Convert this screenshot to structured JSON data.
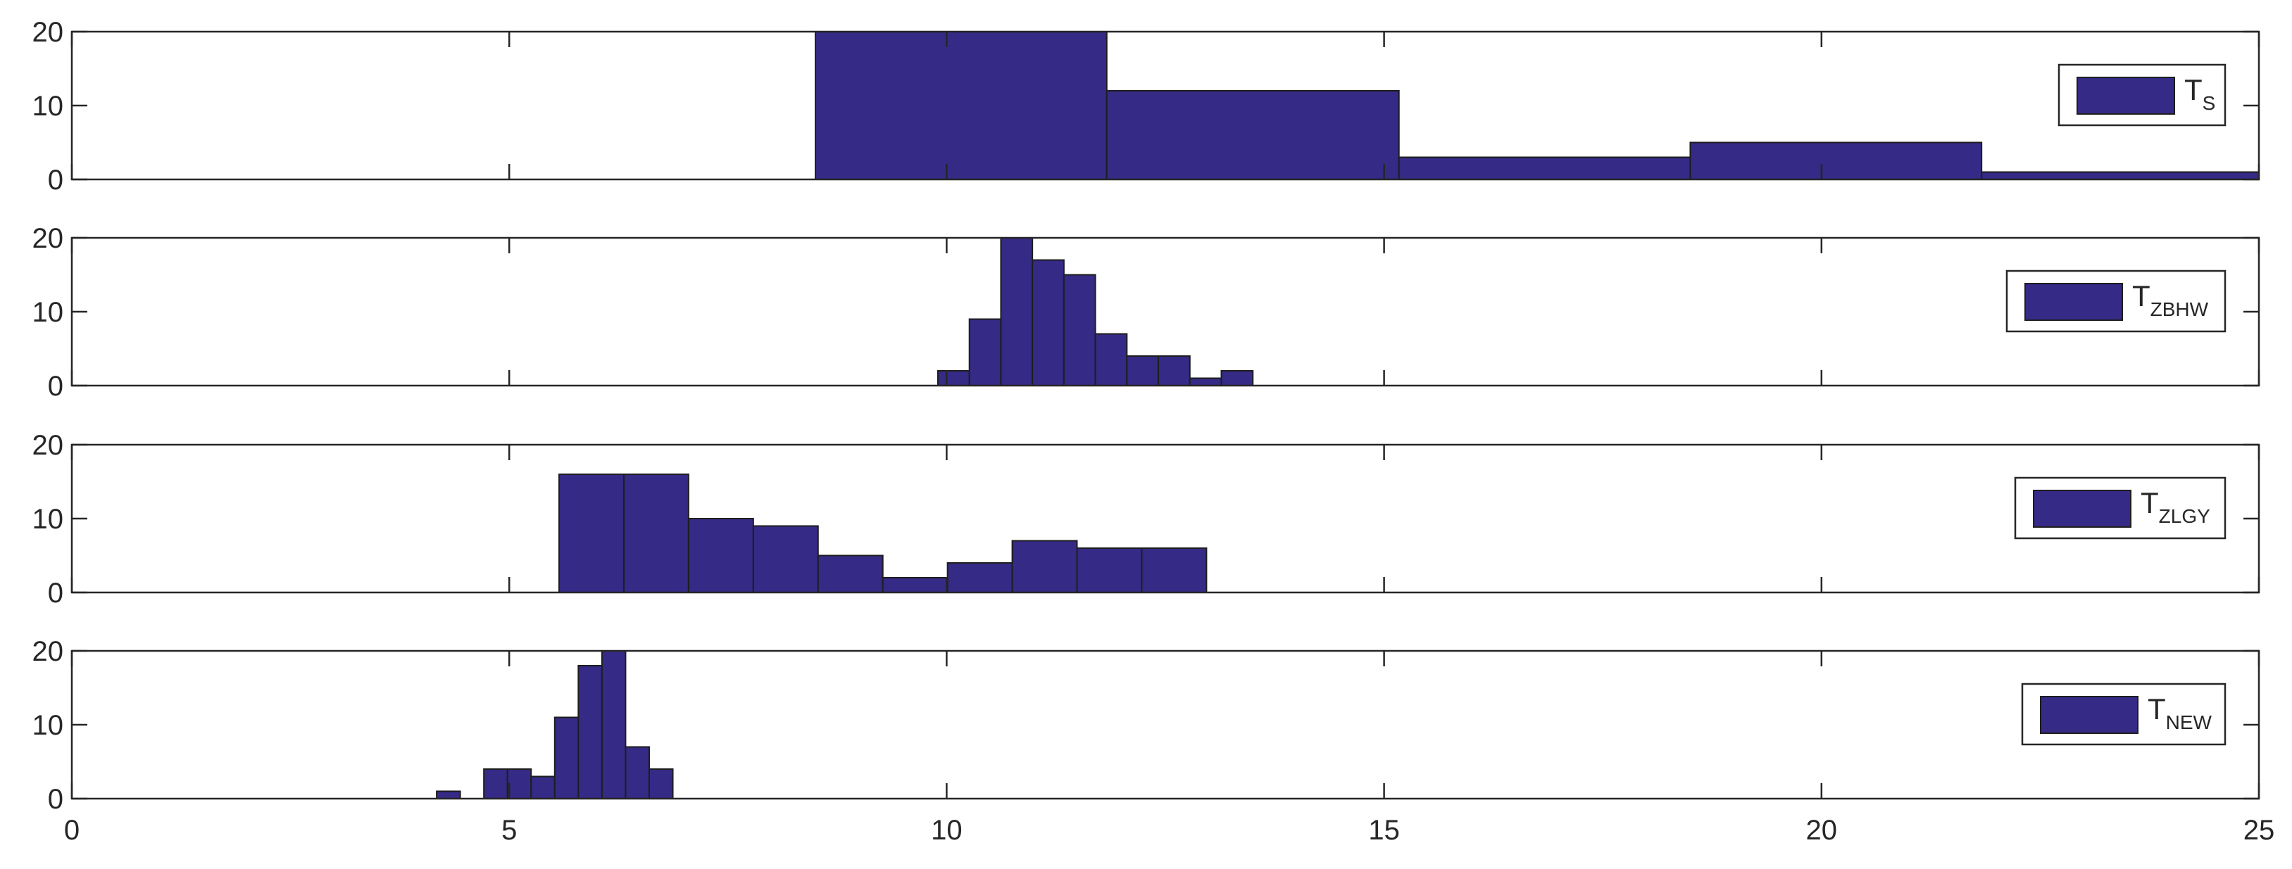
{
  "chart_data": [
    {
      "type": "bar",
      "legend": {
        "main": "T",
        "sub": "S",
        "placement": "right"
      },
      "bar_color": "#352a86",
      "xlim": [
        0,
        25
      ],
      "ylim": [
        0,
        20
      ],
      "xticks": [
        0,
        5,
        10,
        15,
        20,
        25
      ],
      "yticks": [
        0,
        10,
        20
      ],
      "bins": [
        {
          "x0": 8.5,
          "x1": 11.83,
          "count": 20
        },
        {
          "x0": 11.83,
          "x1": 15.17,
          "count": 12
        },
        {
          "x0": 15.17,
          "x1": 18.5,
          "count": 3
        },
        {
          "x0": 18.5,
          "x1": 21.83,
          "count": 5
        },
        {
          "x0": 21.83,
          "x1": 25.17,
          "count": 1
        }
      ]
    },
    {
      "type": "bar",
      "legend": {
        "main": "T",
        "sub": "ZBHW",
        "placement": "right"
      },
      "bar_color": "#352a86",
      "xlim": [
        0,
        25
      ],
      "ylim": [
        0,
        20
      ],
      "xticks": [
        0,
        5,
        10,
        15,
        20,
        25
      ],
      "yticks": [
        0,
        10,
        20
      ],
      "bins": [
        {
          "x0": 9.9,
          "x1": 10.26,
          "count": 2
        },
        {
          "x0": 10.26,
          "x1": 10.62,
          "count": 9
        },
        {
          "x0": 10.62,
          "x1": 10.98,
          "count": 20
        },
        {
          "x0": 10.98,
          "x1": 11.34,
          "count": 17
        },
        {
          "x0": 11.34,
          "x1": 11.7,
          "count": 15
        },
        {
          "x0": 11.7,
          "x1": 12.06,
          "count": 7
        },
        {
          "x0": 12.06,
          "x1": 12.42,
          "count": 4
        },
        {
          "x0": 12.42,
          "x1": 12.78,
          "count": 4
        },
        {
          "x0": 12.78,
          "x1": 13.14,
          "count": 1
        },
        {
          "x0": 13.14,
          "x1": 13.5,
          "count": 2
        }
      ]
    },
    {
      "type": "bar",
      "legend": {
        "main": "T",
        "sub": "ZLGY",
        "placement": "right"
      },
      "bar_color": "#352a86",
      "xlim": [
        0,
        25
      ],
      "ylim": [
        0,
        20
      ],
      "xticks": [
        0,
        5,
        10,
        15,
        20,
        25
      ],
      "yticks": [
        0,
        10,
        20
      ],
      "bins": [
        {
          "x0": 5.57,
          "x1": 6.31,
          "count": 16
        },
        {
          "x0": 6.31,
          "x1": 7.05,
          "count": 16
        },
        {
          "x0": 7.05,
          "x1": 7.79,
          "count": 10
        },
        {
          "x0": 7.79,
          "x1": 8.53,
          "count": 9
        },
        {
          "x0": 8.53,
          "x1": 9.27,
          "count": 5
        },
        {
          "x0": 9.27,
          "x1": 10.01,
          "count": 2
        },
        {
          "x0": 10.01,
          "x1": 10.75,
          "count": 4
        },
        {
          "x0": 10.75,
          "x1": 11.49,
          "count": 7
        },
        {
          "x0": 11.49,
          "x1": 12.23,
          "count": 6
        },
        {
          "x0": 12.23,
          "x1": 12.97,
          "count": 6
        }
      ]
    },
    {
      "type": "bar",
      "legend": {
        "main": "T",
        "sub": "NEW",
        "placement": "right"
      },
      "bar_color": "#352a86",
      "xlim": [
        0,
        25
      ],
      "ylim": [
        0,
        20
      ],
      "xticks": [
        0,
        5,
        10,
        15,
        20,
        25
      ],
      "yticks": [
        0,
        10,
        20
      ],
      "xticklabels": [
        "0",
        "5",
        "10",
        "15",
        "20",
        "25"
      ],
      "bins": [
        {
          "x0": 4.17,
          "x1": 4.44,
          "count": 1
        },
        {
          "x0": 4.44,
          "x1": 4.71,
          "count": 0
        },
        {
          "x0": 4.71,
          "x1": 4.98,
          "count": 4
        },
        {
          "x0": 4.98,
          "x1": 5.25,
          "count": 4
        },
        {
          "x0": 5.25,
          "x1": 5.52,
          "count": 3
        },
        {
          "x0": 5.52,
          "x1": 5.79,
          "count": 11
        },
        {
          "x0": 5.79,
          "x1": 6.06,
          "count": 18
        },
        {
          "x0": 6.06,
          "x1": 6.33,
          "count": 20
        },
        {
          "x0": 6.33,
          "x1": 6.6,
          "count": 7
        },
        {
          "x0": 6.6,
          "x1": 6.87,
          "count": 4
        }
      ]
    }
  ]
}
